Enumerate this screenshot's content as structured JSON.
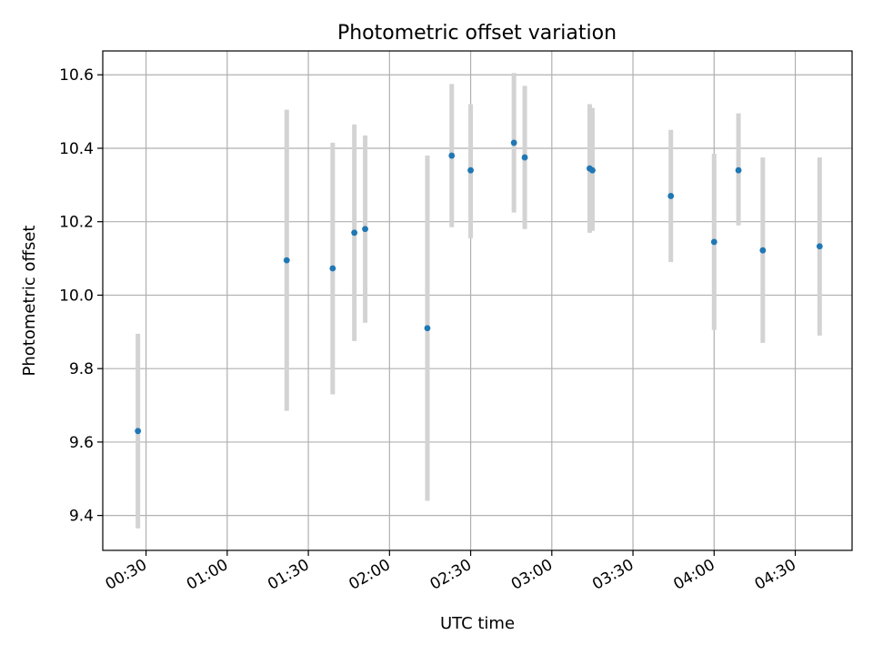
{
  "chart_data": {
    "type": "scatter",
    "title": "Photometric offset variation",
    "xlabel": "UTC time",
    "ylabel": "Photometric offset",
    "x_axis_type": "time",
    "x_tick_labels": [
      "00:30",
      "01:00",
      "01:30",
      "02:00",
      "02:30",
      "03:00",
      "03:30",
      "04:00",
      "04:30"
    ],
    "x_ticks": [
      "00:30",
      "01:00",
      "01:30",
      "02:00",
      "02:30",
      "03:00",
      "03:30",
      "04:00",
      "04:30"
    ],
    "xlim": [
      "00:14",
      "04:51"
    ],
    "ylim": [
      9.305,
      10.665
    ],
    "y_ticks": [
      9.4,
      9.6,
      9.8,
      10.0,
      10.2,
      10.4,
      10.6
    ],
    "y_tick_labels": [
      "9.4",
      "9.6",
      "9.8",
      "10.0",
      "10.2",
      "10.4",
      "10.6"
    ],
    "grid": true,
    "marker_color": "#1f77b4",
    "errorbar_color": "#d3d3d3",
    "points": [
      {
        "x": "00:27",
        "y": 9.63,
        "ylow": 9.365,
        "yhigh": 9.895
      },
      {
        "x": "01:22",
        "y": 10.095,
        "ylow": 9.685,
        "yhigh": 10.505
      },
      {
        "x": "01:39",
        "y": 10.073,
        "ylow": 9.73,
        "yhigh": 10.415
      },
      {
        "x": "01:47",
        "y": 10.17,
        "ylow": 9.875,
        "yhigh": 10.465
      },
      {
        "x": "01:51",
        "y": 10.18,
        "ylow": 9.925,
        "yhigh": 10.435
      },
      {
        "x": "02:14",
        "y": 9.91,
        "ylow": 9.44,
        "yhigh": 10.38
      },
      {
        "x": "02:23",
        "y": 10.38,
        "ylow": 10.185,
        "yhigh": 10.575
      },
      {
        "x": "02:30",
        "y": 10.34,
        "ylow": 10.155,
        "yhigh": 10.52
      },
      {
        "x": "02:46",
        "y": 10.415,
        "ylow": 10.225,
        "yhigh": 10.605
      },
      {
        "x": "02:50",
        "y": 10.375,
        "ylow": 10.18,
        "yhigh": 10.57
      },
      {
        "x": "03:14",
        "y": 10.345,
        "ylow": 10.17,
        "yhigh": 10.52
      },
      {
        "x": "03:15",
        "y": 10.34,
        "ylow": 10.175,
        "yhigh": 10.51
      },
      {
        "x": "03:44",
        "y": 10.27,
        "ylow": 10.09,
        "yhigh": 10.45
      },
      {
        "x": "04:00",
        "y": 10.145,
        "ylow": 9.905,
        "yhigh": 10.385
      },
      {
        "x": "04:09",
        "y": 10.34,
        "ylow": 10.19,
        "yhigh": 10.495
      },
      {
        "x": "04:18",
        "y": 10.122,
        "ylow": 9.87,
        "yhigh": 10.375
      },
      {
        "x": "04:39",
        "y": 10.133,
        "ylow": 9.89,
        "yhigh": 10.375
      }
    ]
  }
}
